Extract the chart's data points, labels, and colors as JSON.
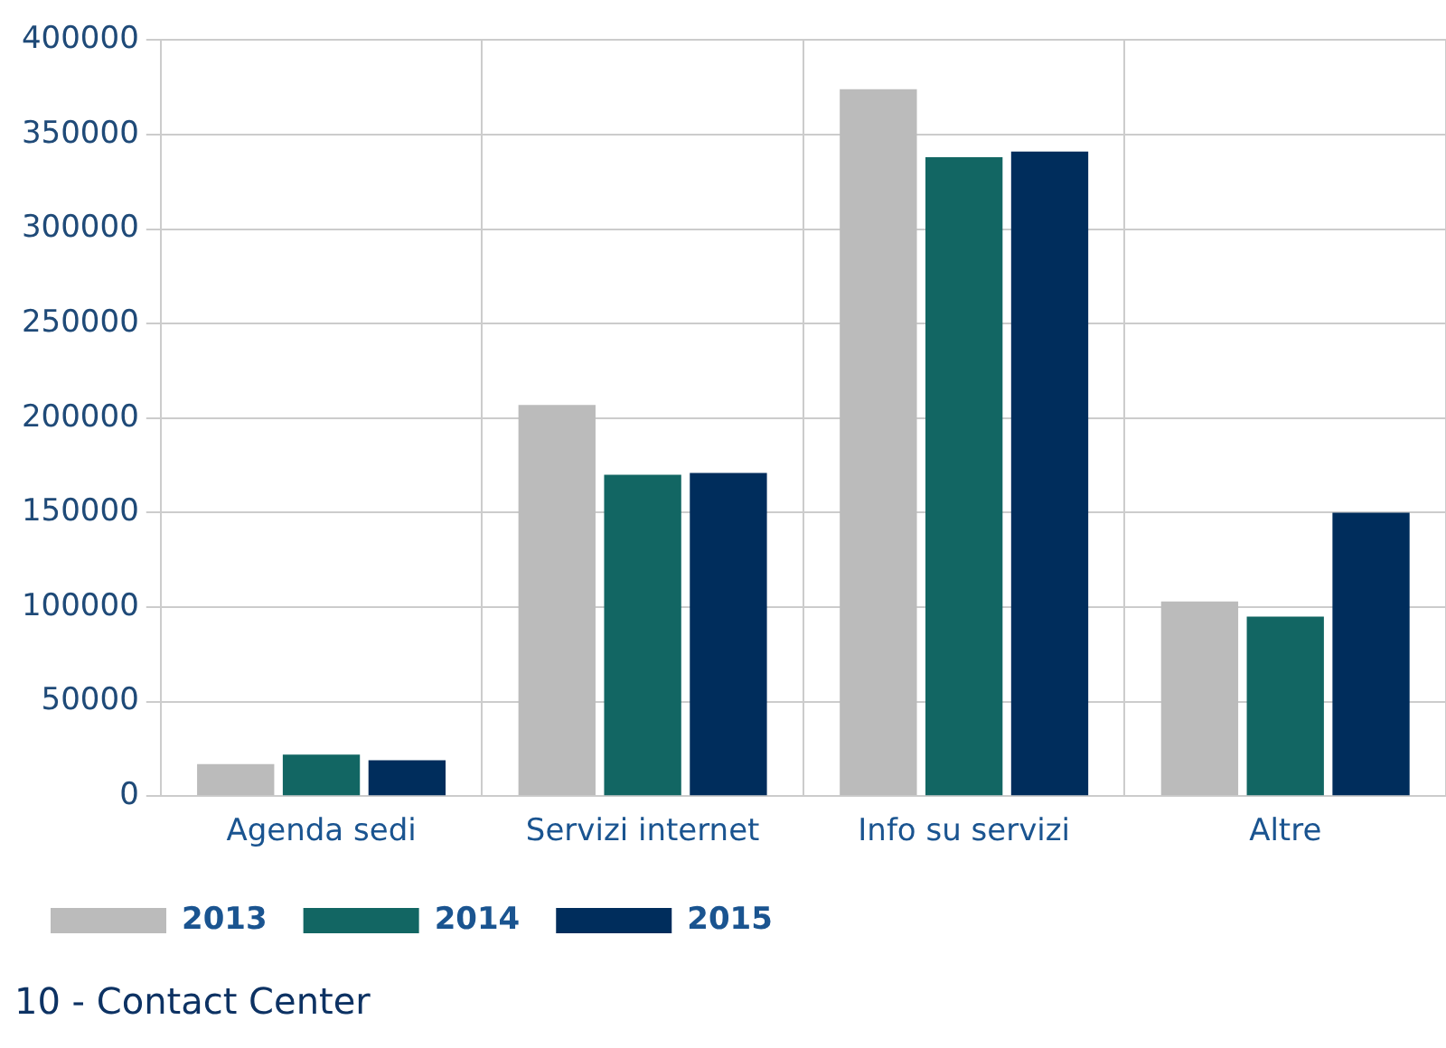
{
  "chart_data": {
    "type": "bar",
    "title": "10 - Contact Center",
    "categories": [
      "Agenda sedi",
      "Servizi internet",
      "Info su servizi",
      "Altre"
    ],
    "series": [
      {
        "name": "2013",
        "color": "#bbbbbb",
        "values": [
          17000,
          207000,
          374000,
          103000
        ]
      },
      {
        "name": "2014",
        "color": "#126663",
        "values": [
          22000,
          170000,
          338000,
          95000
        ]
      },
      {
        "name": "2015",
        "color": "#002d5c",
        "values": [
          19000,
          171000,
          341000,
          150000
        ]
      }
    ],
    "ylim": [
      0,
      400000
    ],
    "yticks": [
      0,
      50000,
      100000,
      150000,
      200000,
      250000,
      300000,
      350000,
      400000
    ],
    "grid": true,
    "legend": "bottom left"
  }
}
